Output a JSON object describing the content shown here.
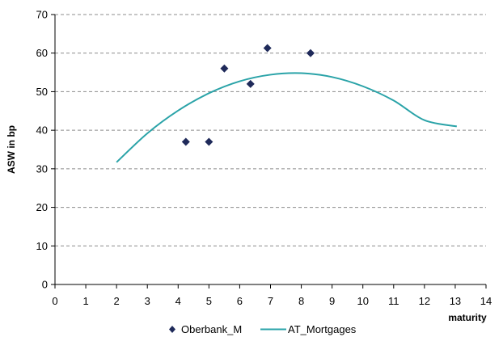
{
  "chart_data": {
    "type": "scatter",
    "title": "",
    "xlabel": "maturity",
    "ylabel": "ASW in bp",
    "xlim": [
      0,
      14
    ],
    "ylim": [
      0,
      70
    ],
    "x_ticks": [
      0,
      1,
      2,
      3,
      4,
      5,
      6,
      7,
      8,
      9,
      10,
      11,
      12,
      13,
      14
    ],
    "y_ticks": [
      0,
      10,
      20,
      30,
      40,
      50,
      60,
      70
    ],
    "grid": "horizontal dashed",
    "legend_position": "bottom",
    "series": [
      {
        "name": "Oberbank_M",
        "type": "scatter",
        "marker": "diamond",
        "color": "#1f2a5a",
        "points": [
          {
            "x": 4.25,
            "y": 37
          },
          {
            "x": 5.0,
            "y": 37
          },
          {
            "x": 5.5,
            "y": 56
          },
          {
            "x": 6.35,
            "y": 52
          },
          {
            "x": 6.9,
            "y": 61.3
          },
          {
            "x": 8.3,
            "y": 60
          }
        ]
      },
      {
        "name": "AT_Mortgages",
        "type": "line",
        "color": "#2aa3a8",
        "points": [
          {
            "x": 2,
            "y": 31.7
          },
          {
            "x": 3,
            "y": 39.2
          },
          {
            "x": 4,
            "y": 45.1
          },
          {
            "x": 5,
            "y": 49.6
          },
          {
            "x": 6,
            "y": 52.7
          },
          {
            "x": 7,
            "y": 54.4
          },
          {
            "x": 8,
            "y": 54.8
          },
          {
            "x": 9,
            "y": 53.8
          },
          {
            "x": 10,
            "y": 51.4
          },
          {
            "x": 11,
            "y": 47.7
          },
          {
            "x": 12,
            "y": 42.6
          },
          {
            "x": 13.05,
            "y": 41
          }
        ]
      }
    ]
  }
}
